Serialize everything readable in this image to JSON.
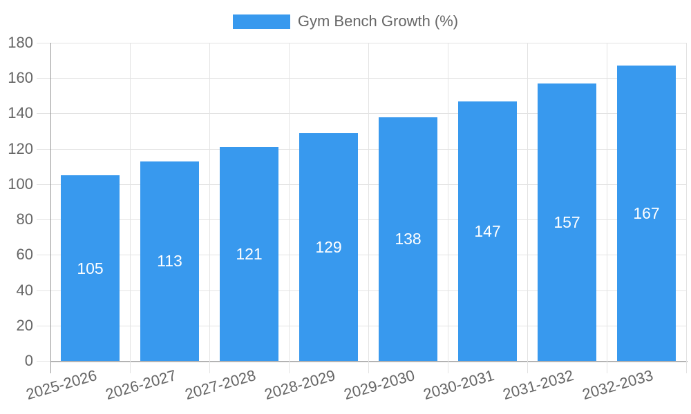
{
  "legend": {
    "label": "Gym Bench Growth (%)"
  },
  "chart_data": {
    "type": "bar",
    "title": "",
    "xlabel": "",
    "ylabel": "",
    "categories": [
      "2025-2026",
      "2026-2027",
      "2027-2028",
      "2028-2029",
      "2029-2030",
      "2030-2031",
      "2031-2032",
      "2032-2033"
    ],
    "series": [
      {
        "name": "Gym Bench Growth (%)",
        "values": [
          105,
          113,
          121,
          129,
          138,
          147,
          157,
          167
        ]
      }
    ],
    "value_labels_shown": true,
    "ylim": [
      0,
      180
    ],
    "yticks": [
      0,
      20,
      40,
      60,
      80,
      100,
      120,
      140,
      160,
      180
    ],
    "grid": true,
    "legend_position": "top",
    "colors": {
      "bar": "#3899ee",
      "gridline": "#e3e3e3",
      "y_axis_line": "#999999",
      "x_baseline": "#b3b3b3",
      "axis_label_text": "#666666",
      "legend_text": "#666666",
      "bar_value_text": "#ffffff",
      "background": "#ffffff"
    }
  }
}
